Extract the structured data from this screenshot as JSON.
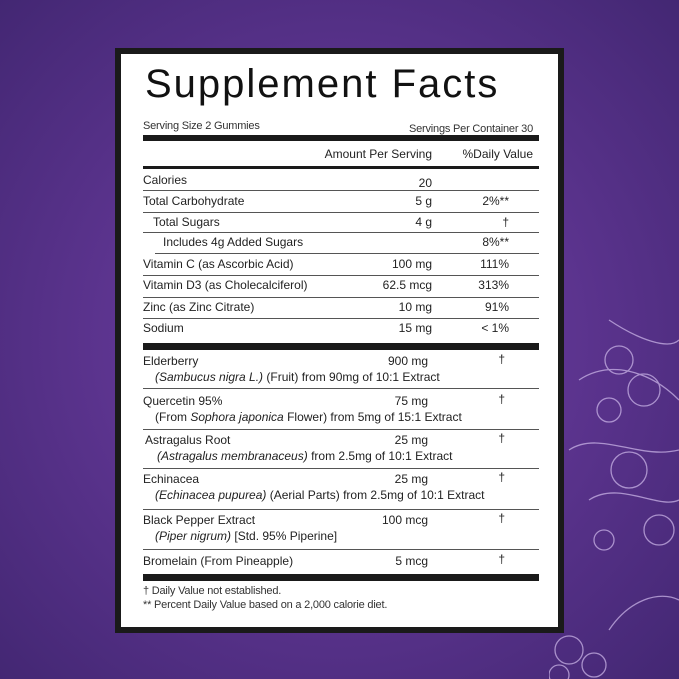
{
  "title": "Supplement Facts",
  "serving_size": "Serving Size 2 Gummies",
  "servings_per_container": "Servings Per Container 30",
  "header": {
    "amount": "Amount Per Serving",
    "dv": "%Daily Value"
  },
  "nutrients": [
    {
      "name": "Calories",
      "amount": "20",
      "dv": ""
    },
    {
      "name": "Total Carbohydrate",
      "amount": "5 g",
      "dv": "2%**"
    },
    {
      "name": "Total Sugars",
      "amount": "4 g",
      "dv": "†"
    },
    {
      "name": "Includes 4g Added Sugars",
      "amount": "",
      "dv": "8%**"
    },
    {
      "name": "Vitamin C (as Ascorbic Acid)",
      "amount": "100 mg",
      "dv": "111%"
    },
    {
      "name": "Vitamin D3 (as Cholecalciferol)",
      "amount": "62.5 mcg",
      "dv": "313%"
    },
    {
      "name": "Zinc (as Zinc Citrate)",
      "amount": "10 mg",
      "dv": "91%"
    },
    {
      "name": "Sodium",
      "amount": "15 mg",
      "dv": "< 1%"
    }
  ],
  "ingredients": [
    {
      "name": "Elderberry",
      "italic": "(Sambucus nigra L.)",
      "pre": "",
      "rest": " (Fruit) from 90mg of 10:1 Extract",
      "amount": "900 mg",
      "dv": "†"
    },
    {
      "name": "Quercetin 95%",
      "pre": "(From ",
      "italic": "Sophora japonica",
      "rest": " Flower) from 5mg of 15:1 Extract",
      "amount": "75 mg",
      "dv": "†"
    },
    {
      "name": "Astragalus Root",
      "pre": "",
      "italic": "(Astragalus membranaceus)",
      "rest": " from 2.5mg of 10:1 Extract",
      "amount": "25 mg",
      "dv": "†"
    },
    {
      "name": "Echinacea",
      "pre": "",
      "italic": "(Echinacea pupurea)",
      "rest": " (Aerial Parts) from 2.5mg of 10:1 Extract",
      "amount": "25 mg",
      "dv": "†"
    },
    {
      "name": "Black Pepper Extract",
      "pre": "",
      "italic": "(Piper nigrum)",
      "rest": " [Std. 95% Piperine]",
      "amount": "100 mcg",
      "dv": "†"
    },
    {
      "name": "Bromelain (From Pineapple)",
      "amount": "5 mcg",
      "dv": "†"
    }
  ],
  "footnotes": [
    "† Daily Value  not established.",
    "** Percent Daily Value based on a 2,000 calorie diet."
  ],
  "colors": {
    "background": "#5e3591",
    "label_border": "#1a1a1a"
  }
}
